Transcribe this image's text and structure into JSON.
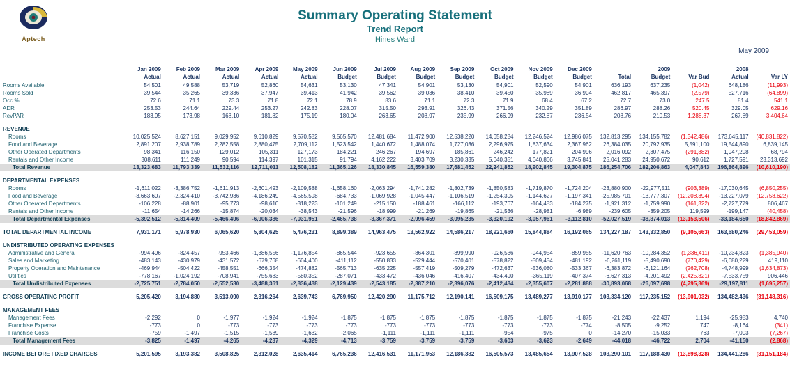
{
  "header": {
    "title": "Summary Operating Statement",
    "subtitle": "Trend Report",
    "property": "Hines Ward",
    "date": "May 2009",
    "logo_text": "Aptech"
  },
  "colors": {
    "accent_teal": "#166f7b",
    "text_navy": "#1f3864",
    "label_teal": "#1d5f6e",
    "negative_red": "#e8000d",
    "total_row_bg": "#dcdcdc"
  },
  "table": {
    "col_top": [
      "Jan 2009",
      "Feb 2009",
      "Mar 2009",
      "Apr 2009",
      "May 2009",
      "Jun 2009",
      "Jul 2009",
      "Aug 2009",
      "Sep 2009",
      "Oct 2009",
      "Nov 2009",
      "Dec 2009",
      "",
      "2009",
      "",
      "2008",
      ""
    ],
    "col_bottom": [
      "Actual",
      "Actual",
      "Actual",
      "Actual",
      "Actual",
      "Budget",
      "Budget",
      "Budget",
      "Budget",
      "Budget",
      "Budget",
      "Budget",
      "Total",
      "Budget",
      "Var Bud",
      "Actual",
      "Var LY"
    ],
    "rows": [
      {
        "label": "Rooms Available",
        "type": "stat",
        "values": [
          "54,501",
          "49,588",
          "53,719",
          "52,860",
          "54,631",
          "53,130",
          "47,341",
          "54,901",
          "53,130",
          "54,901",
          "52,590",
          "54,901",
          "636,193",
          "637,235",
          "(1,042)",
          "648,186",
          "(11,993)"
        ]
      },
      {
        "label": "Rooms Sold",
        "type": "stat",
        "values": [
          "39,544",
          "35,265",
          "39,336",
          "37,947",
          "39,413",
          "41,942",
          "39,562",
          "39,036",
          "38,410",
          "39,450",
          "35,989",
          "36,904",
          "462,817",
          "465,397",
          "(2,579)",
          "527,716",
          "(64,899)"
        ]
      },
      {
        "label": "Occ %",
        "type": "stat",
        "values": [
          "72.6",
          "71.1",
          "73.3",
          "71.8",
          "72.1",
          "78.9",
          "83.6",
          "71.1",
          "72.3",
          "71.9",
          "68.4",
          "67.2",
          "72.7",
          "73.0",
          "247.5",
          "81.4",
          "541.1"
        ]
      },
      {
        "label": "ADR",
        "type": "stat",
        "values": [
          "253.53",
          "244.64",
          "229.44",
          "253.27",
          "242.83",
          "228.07",
          "315.50",
          "293.91",
          "326.43",
          "371.56",
          "340.29",
          "351.89",
          "286.97",
          "288.26",
          "520.45",
          "329.05",
          "629.16"
        ]
      },
      {
        "label": "RevPAR",
        "type": "stat",
        "values": [
          "183.95",
          "173.98",
          "168.10",
          "181.82",
          "175.19",
          "180.04",
          "263.65",
          "208.97",
          "235.99",
          "266.99",
          "232.87",
          "236.54",
          "208.76",
          "210.53",
          "1,288.37",
          "267.89",
          "3,404.64"
        ]
      },
      {
        "label": "",
        "type": "spacer"
      },
      {
        "label": "REVENUE",
        "type": "section"
      },
      {
        "label": "Rooms",
        "type": "item",
        "values": [
          "10,025,524",
          "8,627,151",
          "9,029,952",
          "9,610,829",
          "9,570,582",
          "9,565,570",
          "12,481,684",
          "11,472,900",
          "12,538,220",
          "14,658,284",
          "12,246,524",
          "12,986,075",
          "132,813,295",
          "134,155,782",
          "(1,342,486)",
          "173,645,117",
          "(40,831,822)"
        ]
      },
      {
        "label": "Food and Beverage",
        "type": "item",
        "values": [
          "2,891,207",
          "2,938,789",
          "2,282,558",
          "2,880,475",
          "2,709,112",
          "1,523,542",
          "1,440,672",
          "1,488,074",
          "1,727,036",
          "2,296,975",
          "1,837,634",
          "2,367,962",
          "26,384,035",
          "20,792,935",
          "5,591,100",
          "19,544,890",
          "6,839,145"
        ]
      },
      {
        "label": "Other Operated Departments",
        "type": "item",
        "values": [
          "98,341",
          "116,150",
          "129,012",
          "105,311",
          "127,173",
          "184,221",
          "246,267",
          "194,697",
          "185,861",
          "246,242",
          "177,821",
          "204,996",
          "2,016,092",
          "2,307,475",
          "(291,382)",
          "1,947,298",
          "68,794"
        ]
      },
      {
        "label": "Rentals and Other Income",
        "type": "item",
        "values": [
          "308,611",
          "111,249",
          "90,594",
          "114,397",
          "101,315",
          "91,794",
          "4,162,222",
          "3,403,709",
          "3,230,335",
          "5,040,351",
          "4,640,866",
          "3,745,841",
          "25,041,283",
          "24,950,672",
          "90,612",
          "1,727,591",
          "23,313,692"
        ]
      },
      {
        "label": "Total Revenue",
        "type": "total",
        "values": [
          "13,323,683",
          "11,793,339",
          "11,532,116",
          "12,711,011",
          "12,508,182",
          "11,365,126",
          "18,330,845",
          "16,559,380",
          "17,681,452",
          "22,241,852",
          "18,902,845",
          "19,304,875",
          "186,254,706",
          "182,206,863",
          "4,047,843",
          "196,864,896",
          "(10,610,190)"
        ]
      },
      {
        "label": "",
        "type": "spacer"
      },
      {
        "label": "DEPARTMENTAL EXPENSES",
        "type": "section"
      },
      {
        "label": "Rooms",
        "type": "item",
        "values": [
          "-1,611,022",
          "-3,386,752",
          "-1,611,913",
          "-2,601,493",
          "-2,109,588",
          "-1,658,160",
          "-2,063,294",
          "-1,741,282",
          "-1,802,739",
          "-1,850,583",
          "-1,719,870",
          "-1,724,204",
          "-23,880,900",
          "-22,977,511",
          "(903,389)",
          "-17,030,645",
          "(6,850,255)"
        ]
      },
      {
        "label": "Food and Beverage",
        "type": "item",
        "values": [
          "-3,663,607",
          "-2,324,410",
          "-3,742,936",
          "-4,186,249",
          "-4,565,598",
          "-684,733",
          "-1,069,928",
          "-1,045,447",
          "-1,106,519",
          "-1,254,305",
          "-1,144,627",
          "-1,197,341",
          "-25,985,701",
          "-13,777,307",
          "(12,208,394)",
          "-13,227,079",
          "(12,758,622)"
        ]
      },
      {
        "label": "Other Operated Departments",
        "type": "item",
        "values": [
          "-106,228",
          "-88,901",
          "-95,773",
          "-98,610",
          "-318,223",
          "-101,249",
          "-215,150",
          "-188,461",
          "-166,112",
          "-193,767",
          "-164,483",
          "-184,275",
          "-1,921,312",
          "-1,759,990",
          "(161,322)",
          "-2,727,779",
          "806,467"
        ]
      },
      {
        "label": "Rentals and Other Income",
        "type": "item",
        "values": [
          "-11,654",
          "-14,266",
          "-15,874",
          "-20,034",
          "-38,543",
          "-21,596",
          "-18,999",
          "-21,269",
          "-19,865",
          "-21,536",
          "-28,981",
          "-6,989",
          "-239,605",
          "-359,205",
          "119,599",
          "-199,147",
          "(40,458)"
        ]
      },
      {
        "label": "Total Departmental Expenses",
        "type": "total",
        "values": [
          "-5,392,512",
          "-5,814,409",
          "-5,466,496",
          "-6,906,386",
          "-7,031,951",
          "-2,465,738",
          "-3,367,371",
          "-2,996,459",
          "-3,095,235",
          "-3,320,192",
          "-3,057,961",
          "-3,112,810",
          "-52,027,519",
          "-38,874,013",
          "(13,153,506)",
          "-33,184,650",
          "(18,842,869)"
        ]
      },
      {
        "label": "",
        "type": "spacer"
      },
      {
        "label": "TOTAL DEPARTMENTAL INCOME",
        "type": "grand",
        "values": [
          "7,931,171",
          "5,978,930",
          "6,065,620",
          "5,804,625",
          "5,476,231",
          "8,899,389",
          "14,963,475",
          "13,562,922",
          "14,586,217",
          "18,921,660",
          "15,844,884",
          "16,192,065",
          "134,227,187",
          "143,332,850",
          "(9,105,663)",
          "163,680,246",
          "(29,453,059)"
        ]
      },
      {
        "label": "",
        "type": "spacer"
      },
      {
        "label": "UNDISTRIBUTED OPERATING EXPENSES",
        "type": "section"
      },
      {
        "label": "Administrative and General",
        "type": "item",
        "values": [
          "-994,496",
          "-824,457",
          "-953,466",
          "-1,386,556",
          "-1,176,854",
          "-865,544",
          "-923,655",
          "-864,301",
          "-899,990",
          "-926,536",
          "-944,954",
          "-859,955",
          "-11,620,763",
          "-10,284,352",
          "(1,336,411)",
          "-10,234,823",
          "(1,385,940)"
        ]
      },
      {
        "label": "Sales and Marketing",
        "type": "item",
        "values": [
          "-483,143",
          "-430,979",
          "-431,572",
          "-679,768",
          "-604,400",
          "-411,112",
          "-550,833",
          "-529,444",
          "-570,401",
          "-578,822",
          "-509,454",
          "-481,192",
          "-6,261,119",
          "-5,490,690",
          "(770,429)",
          "-6,680,229",
          "419,110"
        ]
      },
      {
        "label": "Property Operation and Maintenance",
        "type": "item",
        "values": [
          "-469,944",
          "-504,422",
          "-458,551",
          "-666,354",
          "-474,882",
          "-565,713",
          "-635,225",
          "-557,419",
          "-509,279",
          "-472,637",
          "-536,080",
          "-533,367",
          "-6,383,872",
          "-6,121,164",
          "(262,708)",
          "-4,748,999",
          "(1,634,873)"
        ]
      },
      {
        "label": "Utilities",
        "type": "item",
        "values": [
          "-778,167",
          "-1,024,192",
          "-708,941",
          "-755,683",
          "-580,352",
          "-287,071",
          "-433,472",
          "-436,046",
          "-416,407",
          "-434,490",
          "-365,119",
          "-407,374",
          "-6,627,313",
          "-4,201,492",
          "(2,425,821)",
          "-7,533,759",
          "906,446"
        ]
      },
      {
        "label": "Total Undistributed Expenses",
        "type": "total",
        "values": [
          "-2,725,751",
          "-2,784,050",
          "-2,552,530",
          "-3,488,361",
          "-2,836,488",
          "-2,129,439",
          "-2,543,185",
          "-2,387,210",
          "-2,396,076",
          "-2,412,484",
          "-2,355,607",
          "-2,281,888",
          "-30,893,068",
          "-26,097,698",
          "(4,795,369)",
          "-29,197,811",
          "(1,695,257)"
        ]
      },
      {
        "label": "",
        "type": "spacer"
      },
      {
        "label": "GROSS OPERATING PROFIT",
        "type": "grand",
        "values": [
          "5,205,420",
          "3,194,880",
          "3,513,090",
          "2,316,264",
          "2,639,743",
          "6,769,950",
          "12,420,290",
          "11,175,712",
          "12,190,141",
          "16,509,175",
          "13,489,277",
          "13,910,177",
          "103,334,120",
          "117,235,152",
          "(13,901,032)",
          "134,482,436",
          "(31,148,316)"
        ]
      },
      {
        "label": "",
        "type": "spacer"
      },
      {
        "label": "MANAGEMENT FEES",
        "type": "section"
      },
      {
        "label": "Management Fees",
        "type": "item",
        "values": [
          "-2,292",
          "0",
          "-1,977",
          "-1,924",
          "-1,924",
          "-1,875",
          "-1,875",
          "-1,875",
          "-1,875",
          "-1,875",
          "-1,875",
          "-1,875",
          "-21,243",
          "-22,437",
          "1,194",
          "-25,983",
          "4,740"
        ]
      },
      {
        "label": "Franchise Expense",
        "type": "item",
        "values": [
          "-773",
          "0",
          "-773",
          "-773",
          "-773",
          "-773",
          "-773",
          "-773",
          "-773",
          "-773",
          "-773",
          "-774",
          "-8,505",
          "-9,252",
          "747",
          "-8,164",
          "(341)"
        ]
      },
      {
        "label": "Franchise Costs",
        "type": "item",
        "values": [
          "-759",
          "-1,497",
          "-1,515",
          "-1,539",
          "-1,632",
          "-2,065",
          "-1,111",
          "-1,111",
          "-1,111",
          "-954",
          "-975",
          "0",
          "-14,270",
          "-15,033",
          "763",
          "-7,003",
          "(7,267)"
        ]
      },
      {
        "label": "Total Management Fees",
        "type": "total",
        "values": [
          "-3,825",
          "-1,497",
          "-4,265",
          "-4,237",
          "-4,329",
          "-4,713",
          "-3,759",
          "-3,759",
          "-3,759",
          "-3,603",
          "-3,623",
          "-2,649",
          "-44,018",
          "-46,722",
          "2,704",
          "-41,150",
          "(2,868)"
        ]
      },
      {
        "label": "",
        "type": "spacer"
      },
      {
        "label": "INCOME BEFORE FIXED CHARGES",
        "type": "grand",
        "values": [
          "5,201,595",
          "3,193,382",
          "3,508,825",
          "2,312,028",
          "2,635,414",
          "6,765,236",
          "12,416,531",
          "11,171,953",
          "12,186,382",
          "16,505,573",
          "13,485,654",
          "13,907,528",
          "103,290,101",
          "117,188,430",
          "(13,898,328)",
          "134,441,286",
          "(31,151,184)"
        ]
      }
    ]
  },
  "red_values": [
    "247.5",
    "541.1",
    "520.45",
    "629.16",
    "1,288.37",
    "3,404.64"
  ]
}
